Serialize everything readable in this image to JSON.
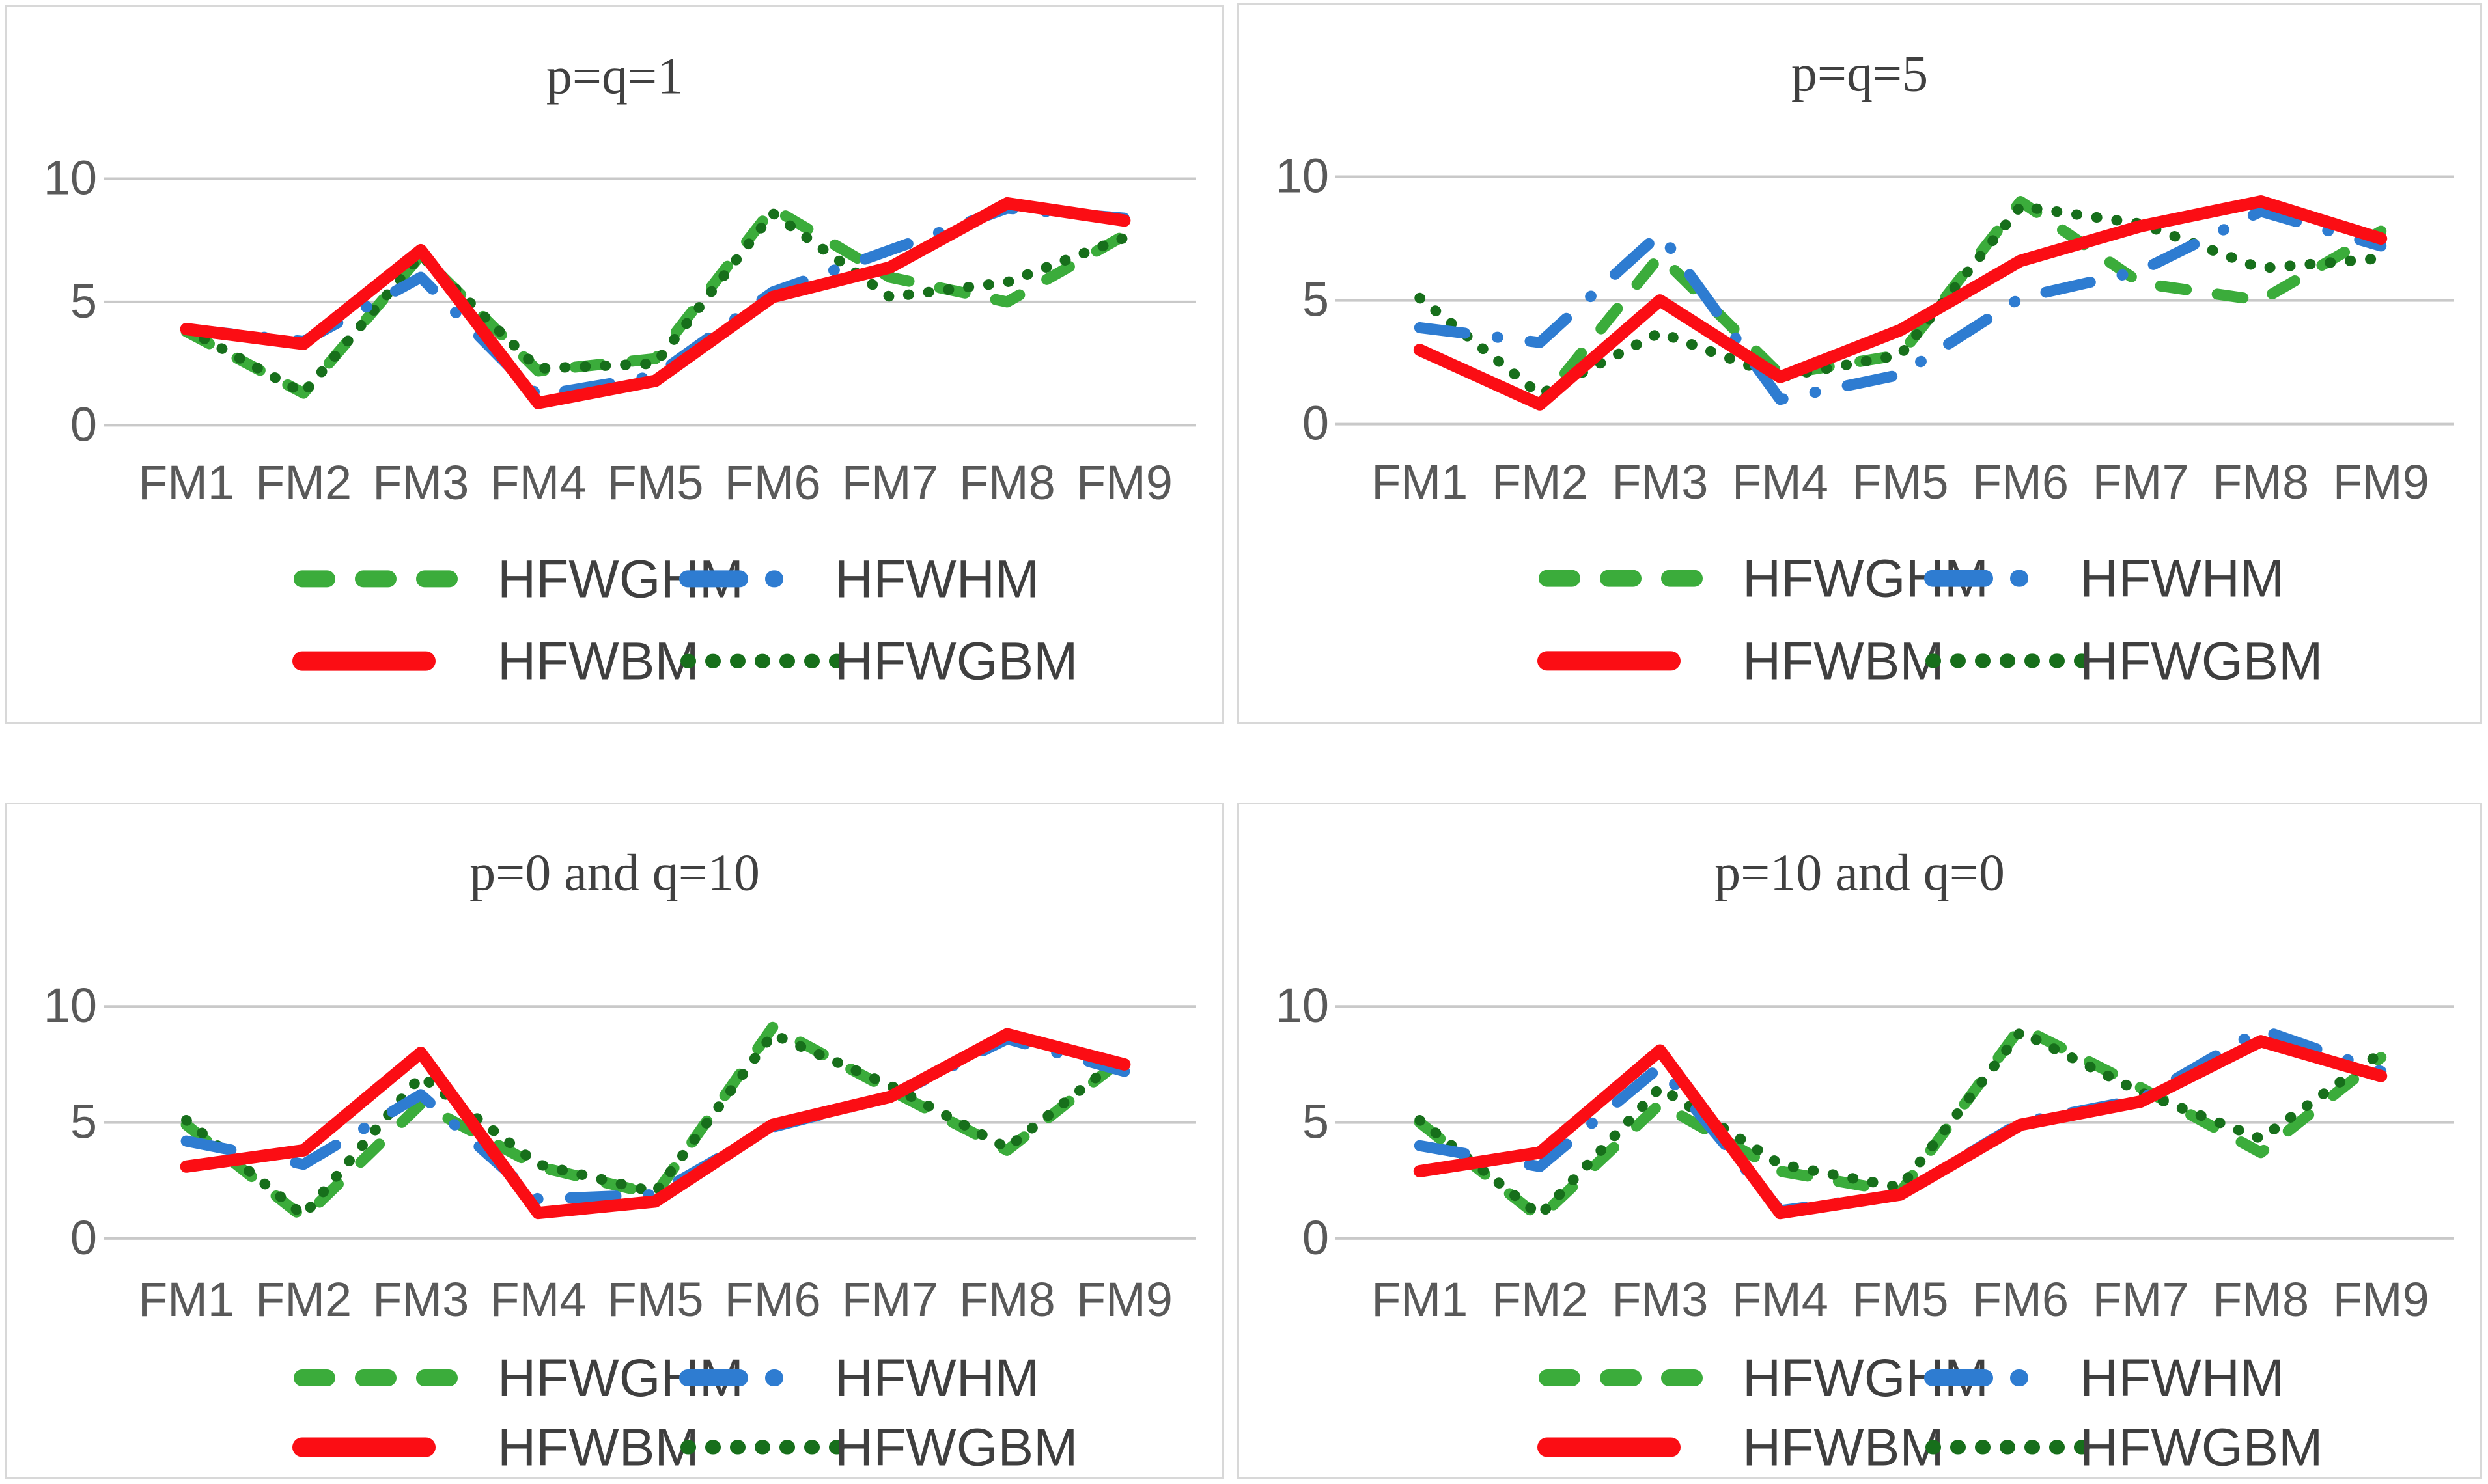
{
  "figure": {
    "background": "#ffffff",
    "panel_border_color": "#d8d8d8",
    "grid_color": "#c9c9c9",
    "axis_text_color": "#595959",
    "title_text_color": "#404040",
    "legend_text_color": "#3f3f3f"
  },
  "chart_data": [
    {
      "type": "line",
      "title": "p=q=1",
      "categories": [
        "FM1",
        "FM2",
        "FM3",
        "FM4",
        "FM5",
        "FM6",
        "FM7",
        "FM8",
        "FM9"
      ],
      "yticks": [
        "0",
        "5",
        "10"
      ],
      "ylim": [
        0,
        10
      ],
      "grid": true,
      "legend_position": "bottom",
      "series": [
        {
          "name": "HFWGHM",
          "color": "#3bac3b",
          "line_style": "dashed",
          "values": [
            3.8,
            1.3,
            6.9,
            2.2,
            2.7,
            8.8,
            6.0,
            5.0,
            7.7
          ]
        },
        {
          "name": "HFWHM",
          "color": "#2e7cd1",
          "line_style": "dashdot",
          "values": [
            3.9,
            3.4,
            6.0,
            1.2,
            2.0,
            5.4,
            7.1,
            8.8,
            8.4
          ]
        },
        {
          "name": "HFWBM",
          "color": "#fb0d14",
          "line_style": "solid",
          "values": [
            3.9,
            3.3,
            7.1,
            0.9,
            1.8,
            5.2,
            6.4,
            9.0,
            8.3
          ]
        },
        {
          "name": "HFWGBM",
          "color": "#176f1b",
          "line_style": "dotted",
          "values": [
            3.9,
            1.3,
            6.9,
            2.3,
            2.5,
            8.6,
            5.2,
            5.8,
            7.6
          ]
        }
      ]
    },
    {
      "type": "line",
      "title": "p=q=5",
      "categories": [
        "FM1",
        "FM2",
        "FM3",
        "FM4",
        "FM5",
        "FM6",
        "FM7",
        "FM8",
        "FM9"
      ],
      "yticks": [
        "0",
        "5",
        "10"
      ],
      "ylim": [
        0,
        10
      ],
      "grid": true,
      "legend_position": "bottom",
      "series": [
        {
          "name": "HFWGHM",
          "color": "#3bac3b",
          "line_style": "dashed",
          "values": [
            3.0,
            0.8,
            6.8,
            2.0,
            2.8,
            9.0,
            5.7,
            5.0,
            7.8
          ]
        },
        {
          "name": "HFWHM",
          "color": "#2e7cd1",
          "line_style": "dashdot",
          "values": [
            3.9,
            3.3,
            7.7,
            1.0,
            2.0,
            5.1,
            6.2,
            8.6,
            7.2
          ]
        },
        {
          "name": "HFWBM",
          "color": "#fb0d14",
          "line_style": "solid",
          "values": [
            3.0,
            0.8,
            5.0,
            1.9,
            3.8,
            6.6,
            8.0,
            9.0,
            7.5
          ]
        },
        {
          "name": "HFWGBM",
          "color": "#176f1b",
          "line_style": "dotted",
          "values": [
            5.1,
            1.2,
            3.7,
            1.9,
            2.8,
            8.8,
            8.1,
            6.3,
            6.7
          ]
        }
      ]
    },
    {
      "type": "line",
      "title": "p=0 and q=10",
      "categories": [
        "FM1",
        "FM2",
        "FM3",
        "FM4",
        "FM5",
        "FM6",
        "FM7",
        "FM8",
        "FM9"
      ],
      "yticks": [
        "0",
        "5",
        "10"
      ],
      "ylim": [
        0,
        10
      ],
      "grid": true,
      "legend_position": "bottom",
      "series": [
        {
          "name": "HFWGHM",
          "color": "#3bac3b",
          "line_style": "dashed",
          "values": [
            4.9,
            0.9,
            5.8,
            3.1,
            1.9,
            9.1,
            6.4,
            3.8,
            7.8
          ]
        },
        {
          "name": "HFWHM",
          "color": "#2e7cd1",
          "line_style": "dashdot",
          "values": [
            4.2,
            3.2,
            6.2,
            1.7,
            1.9,
            4.8,
            6.1,
            8.6,
            7.2
          ]
        },
        {
          "name": "HFWBM",
          "color": "#fb0d14",
          "line_style": "solid",
          "values": [
            3.1,
            3.8,
            8.0,
            1.1,
            1.6,
            4.9,
            6.1,
            8.8,
            7.5
          ]
        },
        {
          "name": "HFWGBM",
          "color": "#176f1b",
          "line_style": "dotted",
          "values": [
            5.1,
            1.0,
            7.0,
            3.2,
            2.0,
            8.8,
            6.6,
            3.9,
            7.9
          ]
        }
      ]
    },
    {
      "type": "line",
      "title": "p=10 and q=0",
      "categories": [
        "FM1",
        "FM2",
        "FM3",
        "FM4",
        "FM5",
        "FM6",
        "FM7",
        "FM8",
        "FM9"
      ],
      "yticks": [
        "0",
        "5",
        "10"
      ],
      "ylim": [
        0,
        10
      ],
      "grid": true,
      "legend_position": "bottom",
      "series": [
        {
          "name": "HFWGHM",
          "color": "#3bac3b",
          "line_style": "dashed",
          "values": [
            5.0,
            0.9,
            5.8,
            2.9,
            2.0,
            9.1,
            6.5,
            3.7,
            7.8
          ]
        },
        {
          "name": "HFWHM",
          "color": "#2e7cd1",
          "line_style": "dashdot",
          "values": [
            4.0,
            3.1,
            7.4,
            1.2,
            1.9,
            5.0,
            6.0,
            9.0,
            7.2
          ]
        },
        {
          "name": "HFWBM",
          "color": "#fb0d14",
          "line_style": "solid",
          "values": [
            2.9,
            3.7,
            8.1,
            1.1,
            1.9,
            4.9,
            5.9,
            8.5,
            7.0
          ]
        },
        {
          "name": "HFWGBM",
          "color": "#176f1b",
          "line_style": "dotted",
          "values": [
            5.1,
            1.0,
            6.5,
            3.2,
            2.2,
            8.9,
            6.3,
            4.3,
            8.0
          ]
        }
      ]
    }
  ]
}
